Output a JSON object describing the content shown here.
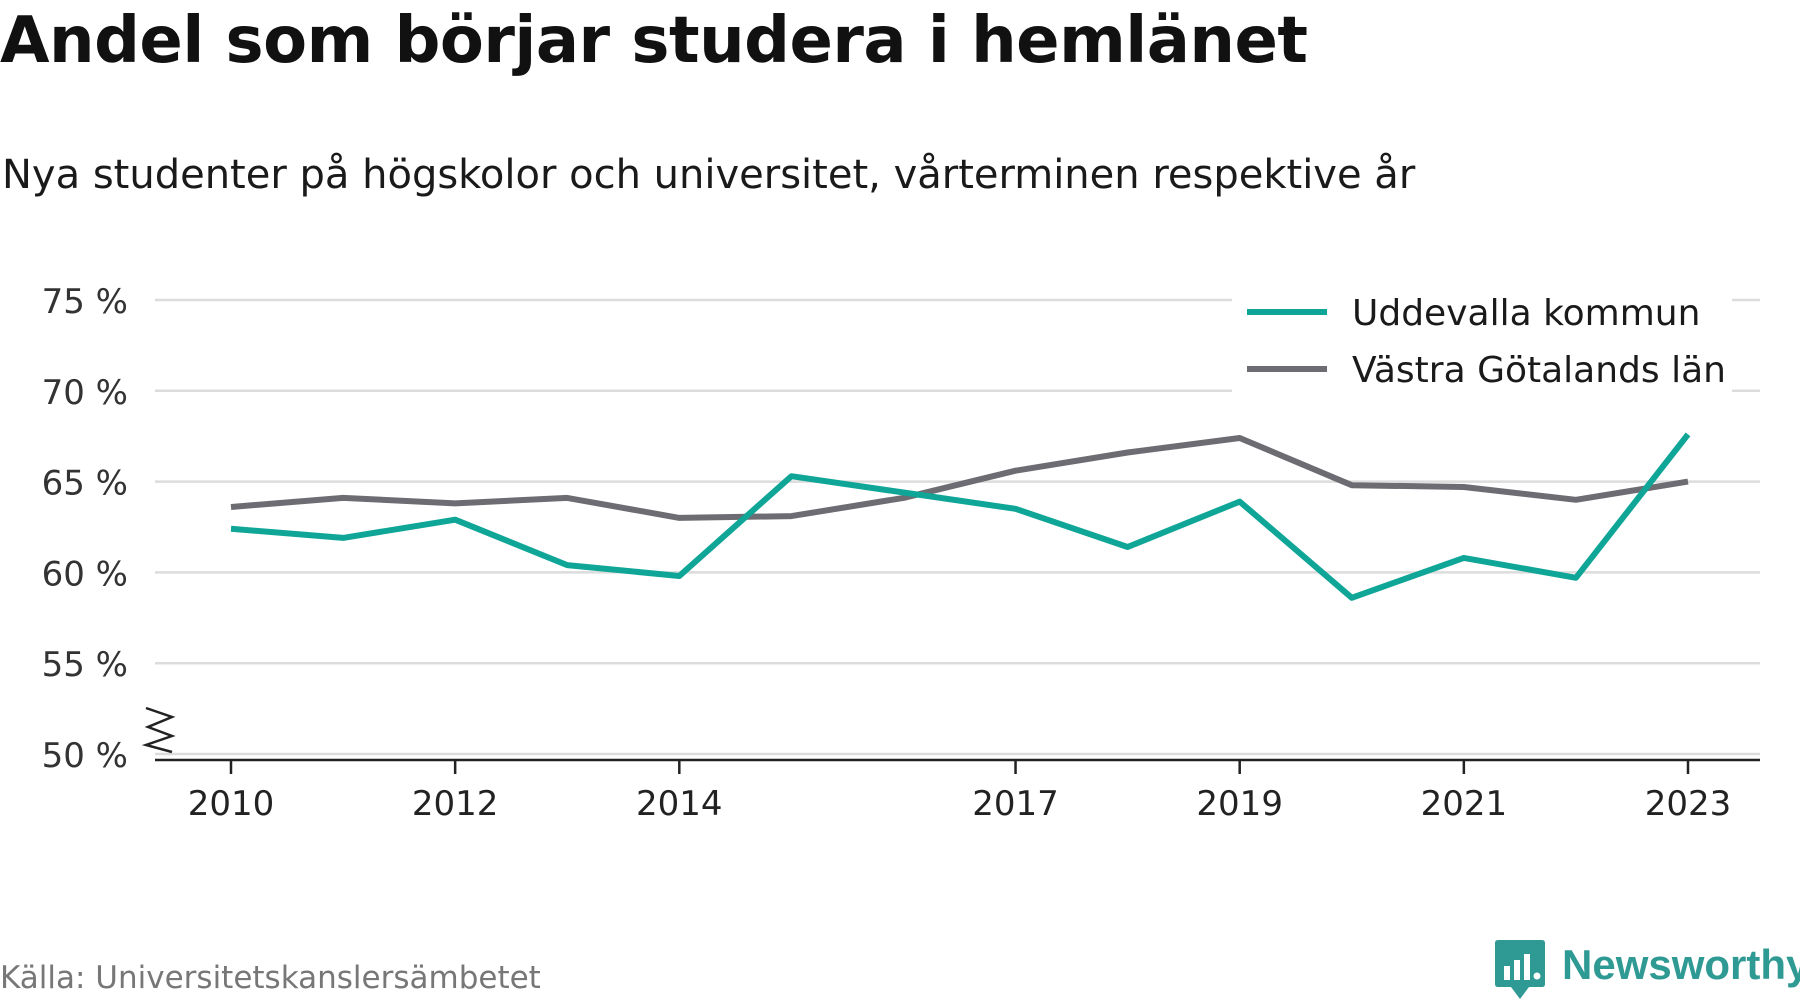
{
  "title": "Andel som börjar studera i hemlänet",
  "subtitle": "Nya studenter på högskolor och universitet, vårterminen respektive år",
  "source": "Källa: Universitetskanslersämbetet",
  "brand": {
    "name": "Newsworthy",
    "logo_icon": "bar-chart-speech-bubble-icon",
    "color": "#2f9a93"
  },
  "chart_data": {
    "type": "line",
    "x": [
      2010,
      2011,
      2012,
      2013,
      2014,
      2015,
      2016,
      2017,
      2018,
      2019,
      2020,
      2021,
      2022,
      2023
    ],
    "x_tick_labels": [
      "2010",
      "2012",
      "2014",
      "2017",
      "2019",
      "2021",
      "2023"
    ],
    "y_tick_labels": [
      "75 %",
      "70 %",
      "65 %",
      "60 %",
      "55 %",
      "50 %"
    ],
    "y_ticks": [
      75,
      70,
      65,
      60,
      55,
      50
    ],
    "ylim": [
      50,
      75
    ],
    "y_axis_break": true,
    "grid": true,
    "legend_position": "top-right",
    "series": [
      {
        "name": "Uddevalla kommun",
        "color": "#0fa697",
        "values": [
          62.4,
          61.9,
          62.9,
          60.4,
          59.8,
          65.3,
          64.4,
          63.5,
          61.4,
          63.9,
          58.6,
          60.8,
          59.7,
          67.6
        ]
      },
      {
        "name": "Västra Götalands län",
        "color": "#6e6c73",
        "values": [
          63.6,
          64.1,
          63.8,
          64.1,
          63.0,
          63.1,
          64.1,
          65.6,
          66.6,
          67.4,
          64.8,
          64.7,
          64.0,
          65.0
        ]
      }
    ]
  }
}
